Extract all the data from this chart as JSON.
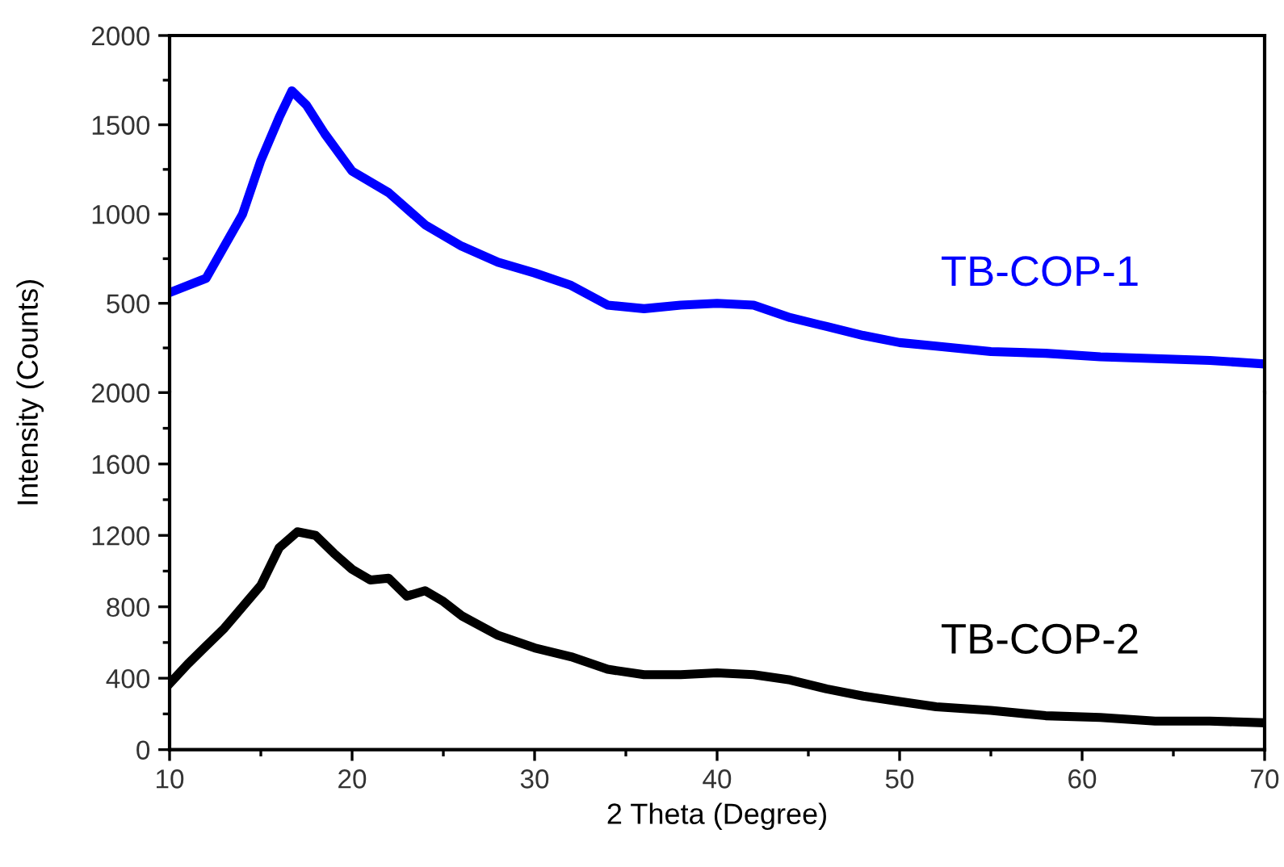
{
  "chart_data": [
    {
      "type": "line",
      "xlim": [
        10,
        70
      ],
      "ylim": [
        0,
        2000
      ],
      "tick_labels": "y",
      "yticks": [
        {
          "value": 250,
          "label": null
        },
        500,
        {
          "value": 750,
          "label": null
        },
        1000,
        {
          "value": 1250,
          "label": null
        },
        1500,
        {
          "value": 1750,
          "label": null
        },
        2000
      ],
      "line_style": "solid",
      "marker": "none",
      "grid": false,
      "legend": false,
      "series": [
        {
          "name": "TB-COP-1",
          "color": "#0000ff",
          "x": [
            10,
            11,
            12,
            13,
            14,
            15,
            16,
            16.7,
            17.5,
            18.5,
            20,
            22,
            24,
            26,
            28,
            30,
            32,
            34,
            36,
            38,
            40,
            42,
            44,
            46,
            48,
            50,
            52,
            55,
            58,
            61,
            64,
            67,
            70
          ],
          "values": [
            560,
            600,
            640,
            820,
            1000,
            1300,
            1540,
            1690,
            1610,
            1450,
            1240,
            1120,
            940,
            820,
            730,
            670,
            600,
            490,
            470,
            490,
            500,
            490,
            420,
            370,
            320,
            280,
            260,
            230,
            220,
            200,
            190,
            180,
            160
          ]
        }
      ]
    },
    {
      "type": "line",
      "xlim": [
        10,
        70
      ],
      "ylim": [
        0,
        2000
      ],
      "xticks": [
        10,
        {
          "value": 15,
          "label": null
        },
        20,
        {
          "value": 25,
          "label": null
        },
        30,
        {
          "value": 35,
          "label": null
        },
        40,
        {
          "value": 45,
          "label": null
        },
        50,
        {
          "value": 55,
          "label": null
        },
        60,
        {
          "value": 65,
          "label": null
        },
        70
      ],
      "yticks": [
        0,
        {
          "value": 200,
          "label": null
        },
        400,
        {
          "value": 600,
          "label": null
        },
        800,
        {
          "value": 1000,
          "label": null
        },
        1200,
        {
          "value": 1400,
          "label": null
        },
        1600,
        {
          "value": 1800,
          "label": null
        },
        2000
      ],
      "xlabel": "2 Theta (Degree)",
      "ylabel": "Intensity (Counts)",
      "line_style": "solid",
      "marker": "none",
      "grid": false,
      "legend": false,
      "series": [
        {
          "name": "TB-COP-2",
          "color": "#000000",
          "x": [
            10,
            11,
            12,
            13,
            14,
            15,
            16,
            17,
            18,
            19,
            20,
            21,
            22,
            23,
            24,
            25,
            26,
            28,
            30,
            32,
            34,
            36,
            38,
            40,
            42,
            44,
            46,
            48,
            50,
            52,
            55,
            58,
            61,
            64,
            67,
            70
          ],
          "values": [
            370,
            480,
            580,
            680,
            800,
            920,
            1130,
            1220,
            1200,
            1100,
            1010,
            950,
            960,
            860,
            890,
            830,
            750,
            640,
            570,
            520,
            450,
            420,
            420,
            430,
            420,
            390,
            340,
            300,
            270,
            240,
            220,
            190,
            180,
            160,
            160,
            150
          ]
        }
      ]
    }
  ]
}
